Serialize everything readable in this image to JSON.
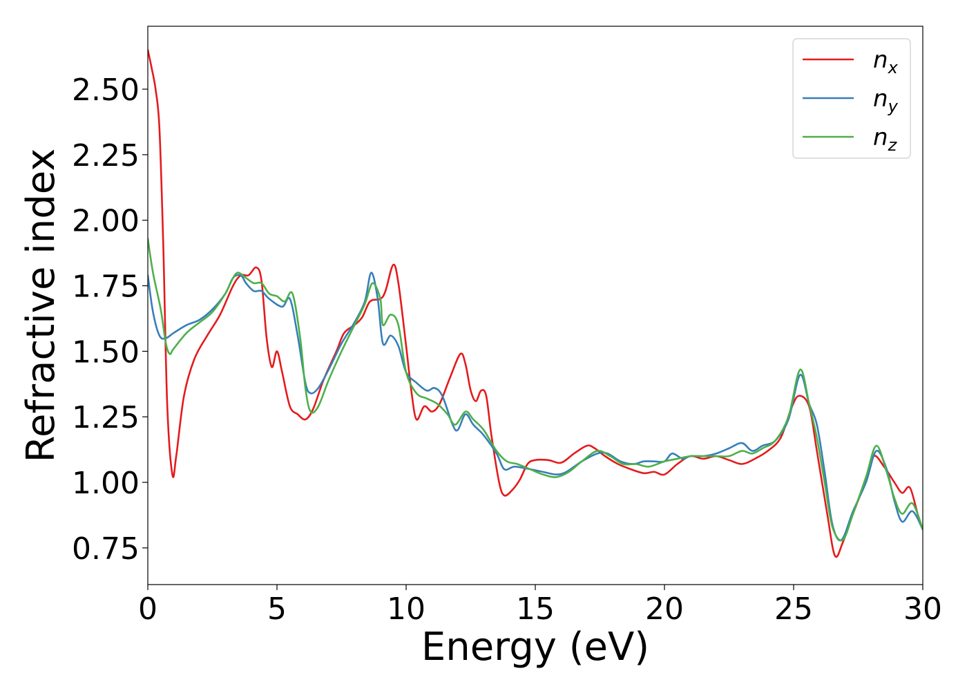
{
  "chart_data": {
    "type": "line",
    "title": "",
    "xlabel": "Energy (eV)",
    "ylabel": "Refractive index",
    "xlim": [
      0,
      30
    ],
    "ylim": [
      0.61,
      2.74
    ],
    "xticks": [
      0,
      5,
      10,
      15,
      20,
      25,
      30
    ],
    "xtick_labels": [
      "0",
      "5",
      "10",
      "15",
      "20",
      "25",
      "30"
    ],
    "yticks": [
      0.75,
      1.0,
      1.25,
      1.5,
      1.75,
      2.0,
      2.25,
      2.5
    ],
    "ytick_labels": [
      "0.75",
      "1.00",
      "1.25",
      "1.50",
      "1.75",
      "2.00",
      "2.25",
      "2.50"
    ],
    "grid": false,
    "legend_position": "top-right",
    "series": [
      {
        "name": "n",
        "subscript": "x",
        "color": "#e41a1c",
        "points": [
          [
            0,
            2.65
          ],
          [
            0.15,
            2.58
          ],
          [
            0.3,
            2.5
          ],
          [
            0.45,
            2.35
          ],
          [
            0.6,
            1.9
          ],
          [
            0.75,
            1.3
          ],
          [
            0.95,
            1.03
          ],
          [
            1.1,
            1.1
          ],
          [
            1.4,
            1.33
          ],
          [
            1.8,
            1.47
          ],
          [
            2.3,
            1.56
          ],
          [
            2.8,
            1.64
          ],
          [
            3.3,
            1.75
          ],
          [
            3.6,
            1.79
          ],
          [
            3.9,
            1.79
          ],
          [
            4.2,
            1.82
          ],
          [
            4.4,
            1.77
          ],
          [
            4.6,
            1.55
          ],
          [
            4.8,
            1.44
          ],
          [
            5.0,
            1.5
          ],
          [
            5.2,
            1.42
          ],
          [
            5.5,
            1.29
          ],
          [
            5.8,
            1.26
          ],
          [
            6.1,
            1.24
          ],
          [
            6.4,
            1.28
          ],
          [
            6.8,
            1.39
          ],
          [
            7.3,
            1.5
          ],
          [
            7.6,
            1.57
          ],
          [
            8.0,
            1.6
          ],
          [
            8.3,
            1.63
          ],
          [
            8.6,
            1.69
          ],
          [
            9.0,
            1.7
          ],
          [
            9.2,
            1.73
          ],
          [
            9.5,
            1.83
          ],
          [
            9.7,
            1.76
          ],
          [
            10.0,
            1.52
          ],
          [
            10.2,
            1.35
          ],
          [
            10.4,
            1.24
          ],
          [
            10.7,
            1.29
          ],
          [
            11.0,
            1.27
          ],
          [
            11.3,
            1.3
          ],
          [
            11.7,
            1.4
          ],
          [
            12.1,
            1.49
          ],
          [
            12.3,
            1.45
          ],
          [
            12.5,
            1.35
          ],
          [
            12.7,
            1.31
          ],
          [
            12.9,
            1.35
          ],
          [
            13.1,
            1.33
          ],
          [
            13.3,
            1.18
          ],
          [
            13.6,
            1.0
          ],
          [
            13.8,
            0.95
          ],
          [
            14.1,
            0.97
          ],
          [
            14.4,
            1.01
          ],
          [
            14.7,
            1.07
          ],
          [
            15.0,
            1.085
          ],
          [
            15.5,
            1.085
          ],
          [
            16.0,
            1.075
          ],
          [
            16.5,
            1.11
          ],
          [
            17.0,
            1.14
          ],
          [
            17.3,
            1.13
          ],
          [
            17.7,
            1.1
          ],
          [
            18.2,
            1.07
          ],
          [
            18.7,
            1.05
          ],
          [
            19.2,
            1.035
          ],
          [
            19.6,
            1.04
          ],
          [
            20.0,
            1.03
          ],
          [
            20.5,
            1.07
          ],
          [
            21.0,
            1.1
          ],
          [
            21.5,
            1.09
          ],
          [
            22.0,
            1.1
          ],
          [
            22.5,
            1.085
          ],
          [
            23.0,
            1.07
          ],
          [
            23.5,
            1.09
          ],
          [
            24.0,
            1.12
          ],
          [
            24.5,
            1.17
          ],
          [
            24.9,
            1.28
          ],
          [
            25.2,
            1.33
          ],
          [
            25.6,
            1.29
          ],
          [
            25.9,
            1.12
          ],
          [
            26.3,
            0.88
          ],
          [
            26.6,
            0.72
          ],
          [
            26.9,
            0.77
          ],
          [
            27.3,
            0.88
          ],
          [
            27.8,
            1.01
          ],
          [
            28.1,
            1.1
          ],
          [
            28.5,
            1.06
          ],
          [
            28.9,
            1.0
          ],
          [
            29.2,
            0.96
          ],
          [
            29.5,
            0.98
          ],
          [
            29.8,
            0.88
          ],
          [
            30.0,
            0.82
          ]
        ]
      },
      {
        "name": "n",
        "subscript": "y",
        "color": "#377eb8",
        "points": [
          [
            0,
            1.79
          ],
          [
            0.2,
            1.65
          ],
          [
            0.45,
            1.56
          ],
          [
            0.7,
            1.55
          ],
          [
            1.0,
            1.57
          ],
          [
            1.5,
            1.6
          ],
          [
            2.0,
            1.62
          ],
          [
            2.5,
            1.66
          ],
          [
            3.0,
            1.72
          ],
          [
            3.3,
            1.78
          ],
          [
            3.6,
            1.79
          ],
          [
            3.8,
            1.76
          ],
          [
            4.1,
            1.73
          ],
          [
            4.4,
            1.73
          ],
          [
            4.7,
            1.7
          ],
          [
            5.2,
            1.67
          ],
          [
            5.5,
            1.7
          ],
          [
            5.8,
            1.56
          ],
          [
            6.1,
            1.38
          ],
          [
            6.3,
            1.34
          ],
          [
            6.6,
            1.36
          ],
          [
            7.0,
            1.43
          ],
          [
            7.5,
            1.53
          ],
          [
            8.0,
            1.61
          ],
          [
            8.4,
            1.69
          ],
          [
            8.65,
            1.8
          ],
          [
            8.9,
            1.7
          ],
          [
            9.1,
            1.53
          ],
          [
            9.4,
            1.56
          ],
          [
            9.7,
            1.52
          ],
          [
            10.0,
            1.42
          ],
          [
            10.4,
            1.38
          ],
          [
            10.8,
            1.35
          ],
          [
            11.1,
            1.36
          ],
          [
            11.4,
            1.33
          ],
          [
            11.8,
            1.22
          ],
          [
            12.0,
            1.2
          ],
          [
            12.3,
            1.26
          ],
          [
            12.6,
            1.22
          ],
          [
            13.0,
            1.18
          ],
          [
            13.5,
            1.11
          ],
          [
            13.8,
            1.05
          ],
          [
            14.2,
            1.06
          ],
          [
            14.8,
            1.05
          ],
          [
            15.3,
            1.04
          ],
          [
            15.8,
            1.03
          ],
          [
            16.2,
            1.04
          ],
          [
            16.8,
            1.08
          ],
          [
            17.4,
            1.11
          ],
          [
            17.8,
            1.11
          ],
          [
            18.3,
            1.08
          ],
          [
            18.8,
            1.07
          ],
          [
            19.2,
            1.08
          ],
          [
            19.6,
            1.08
          ],
          [
            20.0,
            1.08
          ],
          [
            20.3,
            1.11
          ],
          [
            20.7,
            1.09
          ],
          [
            21.0,
            1.1
          ],
          [
            21.5,
            1.1
          ],
          [
            22.0,
            1.11
          ],
          [
            22.5,
            1.13
          ],
          [
            23.0,
            1.15
          ],
          [
            23.4,
            1.12
          ],
          [
            23.8,
            1.14
          ],
          [
            24.3,
            1.16
          ],
          [
            24.8,
            1.24
          ],
          [
            25.25,
            1.41
          ],
          [
            25.6,
            1.3
          ],
          [
            25.9,
            1.22
          ],
          [
            26.2,
            1.04
          ],
          [
            26.5,
            0.84
          ],
          [
            26.85,
            0.78
          ],
          [
            27.3,
            0.89
          ],
          [
            27.8,
            1.0
          ],
          [
            28.2,
            1.12
          ],
          [
            28.6,
            1.05
          ],
          [
            28.9,
            0.93
          ],
          [
            29.2,
            0.85
          ],
          [
            29.6,
            0.89
          ],
          [
            30.0,
            0.82
          ]
        ]
      },
      {
        "name": "n",
        "subscript": "z",
        "color": "#4daf4a",
        "points": [
          [
            0,
            1.93
          ],
          [
            0.2,
            1.8
          ],
          [
            0.5,
            1.66
          ],
          [
            0.7,
            1.53
          ],
          [
            0.85,
            1.49
          ],
          [
            1.0,
            1.51
          ],
          [
            1.5,
            1.57
          ],
          [
            2.0,
            1.61
          ],
          [
            2.5,
            1.65
          ],
          [
            3.0,
            1.72
          ],
          [
            3.3,
            1.78
          ],
          [
            3.5,
            1.8
          ],
          [
            3.8,
            1.78
          ],
          [
            4.1,
            1.76
          ],
          [
            4.4,
            1.76
          ],
          [
            4.7,
            1.72
          ],
          [
            5.0,
            1.71
          ],
          [
            5.3,
            1.69
          ],
          [
            5.6,
            1.72
          ],
          [
            5.9,
            1.55
          ],
          [
            6.1,
            1.36
          ],
          [
            6.3,
            1.27
          ],
          [
            6.6,
            1.29
          ],
          [
            7.0,
            1.39
          ],
          [
            7.5,
            1.5
          ],
          [
            8.0,
            1.6
          ],
          [
            8.4,
            1.68
          ],
          [
            8.7,
            1.76
          ],
          [
            9.0,
            1.7
          ],
          [
            9.1,
            1.6
          ],
          [
            9.4,
            1.64
          ],
          [
            9.7,
            1.6
          ],
          [
            10.0,
            1.42
          ],
          [
            10.4,
            1.34
          ],
          [
            10.8,
            1.32
          ],
          [
            11.2,
            1.3
          ],
          [
            11.6,
            1.26
          ],
          [
            11.9,
            1.22
          ],
          [
            12.3,
            1.27
          ],
          [
            12.6,
            1.24
          ],
          [
            13.0,
            1.2
          ],
          [
            13.5,
            1.12
          ],
          [
            13.9,
            1.08
          ],
          [
            14.3,
            1.07
          ],
          [
            14.8,
            1.05
          ],
          [
            15.3,
            1.03
          ],
          [
            15.8,
            1.02
          ],
          [
            16.3,
            1.04
          ],
          [
            16.8,
            1.08
          ],
          [
            17.4,
            1.12
          ],
          [
            17.9,
            1.1
          ],
          [
            18.4,
            1.07
          ],
          [
            18.9,
            1.07
          ],
          [
            19.4,
            1.06
          ],
          [
            20.0,
            1.08
          ],
          [
            20.5,
            1.09
          ],
          [
            21.0,
            1.1
          ],
          [
            21.5,
            1.1
          ],
          [
            22.0,
            1.1
          ],
          [
            22.5,
            1.1
          ],
          [
            23.0,
            1.12
          ],
          [
            23.4,
            1.11
          ],
          [
            23.8,
            1.13
          ],
          [
            24.3,
            1.16
          ],
          [
            24.8,
            1.25
          ],
          [
            25.25,
            1.43
          ],
          [
            25.6,
            1.3
          ],
          [
            25.9,
            1.17
          ],
          [
            26.2,
            1.0
          ],
          [
            26.5,
            0.83
          ],
          [
            26.9,
            0.78
          ],
          [
            27.3,
            0.88
          ],
          [
            27.8,
            1.02
          ],
          [
            28.2,
            1.14
          ],
          [
            28.6,
            1.04
          ],
          [
            28.9,
            0.94
          ],
          [
            29.2,
            0.88
          ],
          [
            29.6,
            0.92
          ],
          [
            30.0,
            0.82
          ]
        ]
      }
    ]
  }
}
